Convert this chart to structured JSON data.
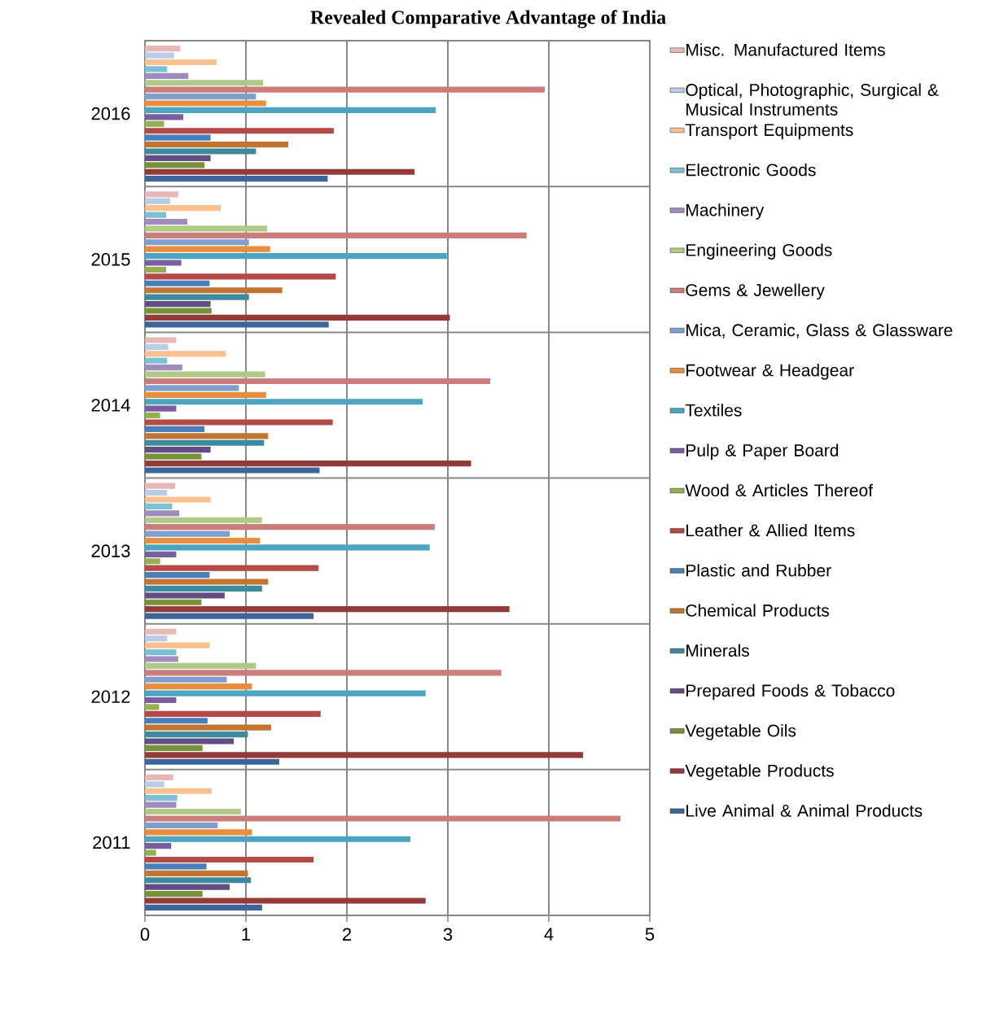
{
  "chart_data": {
    "type": "bar",
    "orientation": "horizontal",
    "title": "Revealed Comparative Advantage of India",
    "categories": [
      "2016",
      "2015",
      "2014",
      "2013",
      "2012",
      "2011"
    ],
    "xlim": [
      0,
      5
    ],
    "xticks": [
      0,
      1,
      2,
      3,
      4,
      5
    ],
    "grid": true,
    "legend": "right",
    "series": [
      {
        "name": "Misc. Manufactured Items",
        "color": "#e6b9b8",
        "values": [
          0.35,
          0.33,
          0.31,
          0.3,
          0.31,
          0.28
        ]
      },
      {
        "name": "Optical, Photographic, Surgical & Musical Instruments",
        "color": "#b9cde5",
        "values": [
          0.29,
          0.25,
          0.23,
          0.22,
          0.22,
          0.19
        ]
      },
      {
        "name": "Transport Equipments",
        "color": "#fac090",
        "values": [
          0.71,
          0.75,
          0.8,
          0.65,
          0.64,
          0.66
        ]
      },
      {
        "name": "Electronic Goods",
        "color": "#7cc0d5",
        "values": [
          0.22,
          0.21,
          0.22,
          0.27,
          0.31,
          0.32
        ]
      },
      {
        "name": "Machinery",
        "color": "#a08cbc",
        "values": [
          0.43,
          0.42,
          0.37,
          0.34,
          0.33,
          0.31
        ]
      },
      {
        "name": "Engineering Goods",
        "color": "#b0c987",
        "values": [
          1.17,
          1.21,
          1.19,
          1.16,
          1.1,
          0.95
        ]
      },
      {
        "name": "Gems & Jewellery",
        "color": "#cc7c7a",
        "values": [
          3.96,
          3.78,
          3.42,
          2.87,
          3.53,
          4.71
        ]
      },
      {
        "name": "Mica, Ceramic, Glass & Glassware",
        "color": "#7f9fce",
        "values": [
          1.1,
          1.03,
          0.93,
          0.84,
          0.81,
          0.72
        ]
      },
      {
        "name": "Footwear & Headgear",
        "color": "#e98d3e",
        "values": [
          1.2,
          1.24,
          1.2,
          1.14,
          1.06,
          1.06
        ]
      },
      {
        "name": "Textiles",
        "color": "#4ba5be",
        "values": [
          2.88,
          2.99,
          2.75,
          2.82,
          2.78,
          2.63
        ]
      },
      {
        "name": "Pulp & Paper Board",
        "color": "#7b5ea0",
        "values": [
          0.38,
          0.36,
          0.31,
          0.31,
          0.31,
          0.26
        ]
      },
      {
        "name": "Wood & Articles Thereof",
        "color": "#93b052",
        "values": [
          0.19,
          0.21,
          0.15,
          0.15,
          0.14,
          0.11
        ]
      },
      {
        "name": "Leather & Allied Items",
        "color": "#b34a47",
        "values": [
          1.87,
          1.89,
          1.86,
          1.72,
          1.74,
          1.67
        ]
      },
      {
        "name": "Plastic and Rubber",
        "color": "#4a7ebb",
        "values": [
          0.65,
          0.64,
          0.59,
          0.64,
          0.62,
          0.61
        ]
      },
      {
        "name": "Chemical Products",
        "color": "#c27532",
        "values": [
          1.42,
          1.36,
          1.22,
          1.22,
          1.25,
          1.02
        ]
      },
      {
        "name": "Minerals",
        "color": "#3b8a9e",
        "values": [
          1.1,
          1.03,
          1.18,
          1.16,
          1.02,
          1.05
        ]
      },
      {
        "name": "Prepared Foods & Tobacco",
        "color": "#634e83",
        "values": [
          0.65,
          0.65,
          0.65,
          0.79,
          0.88,
          0.84
        ]
      },
      {
        "name": "Vegetable Oils",
        "color": "#77923b",
        "values": [
          0.59,
          0.66,
          0.56,
          0.56,
          0.57,
          0.57
        ]
      },
      {
        "name": "Vegetable Products",
        "color": "#943a38",
        "values": [
          2.67,
          3.02,
          3.23,
          3.61,
          4.34,
          2.78
        ]
      },
      {
        "name": "Live Animal & Animal Products",
        "color": "#3e659a",
        "values": [
          1.81,
          1.82,
          1.73,
          1.67,
          1.33,
          1.16
        ]
      }
    ]
  }
}
